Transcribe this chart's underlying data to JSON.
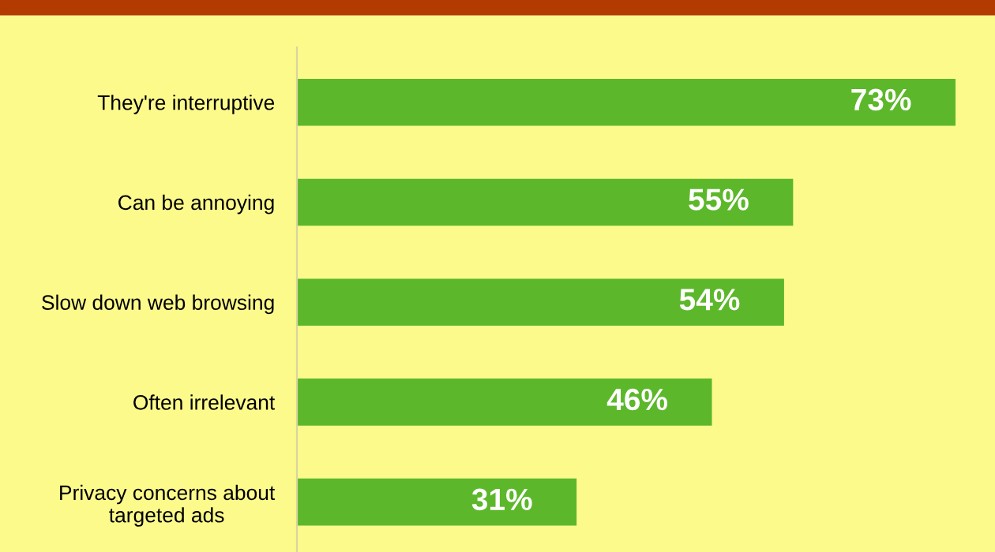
{
  "chart_data": {
    "type": "bar",
    "orientation": "horizontal",
    "categories": [
      "They're interruptive",
      "Can be annoying",
      "Slow down web browsing",
      "Often irrelevant",
      "Privacy concerns about\ntargeted ads"
    ],
    "values": [
      73,
      55,
      54,
      46,
      31
    ],
    "color": "#5cb82a",
    "value_labels": [
      "73%",
      "55%",
      "54%",
      "46%",
      "31%"
    ],
    "grid": false,
    "legend": false
  }
}
